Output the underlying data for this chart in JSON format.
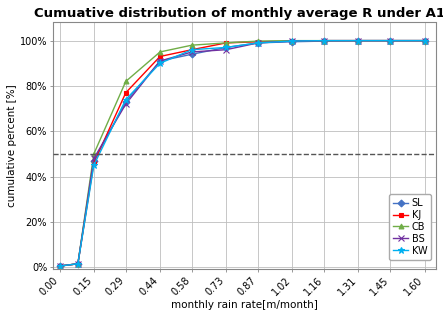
{
  "title": "Cumuative distribution of monthly average R under A1B",
  "xlabel": "monthly rain rate[m/month]",
  "ylabel": "cumulative percent [%]",
  "x_ticks": [
    0.0,
    0.15,
    0.29,
    0.44,
    0.58,
    0.73,
    0.87,
    1.02,
    1.16,
    1.31,
    1.45,
    1.6
  ],
  "series": [
    {
      "label": "SL",
      "color": "#4472C4",
      "marker": "D",
      "markersize": 3.5,
      "x": [
        0.0,
        0.08,
        0.15,
        0.29,
        0.44,
        0.58,
        0.73,
        0.87,
        1.02,
        1.16,
        1.31,
        1.45,
        1.6
      ],
      "y": [
        0.005,
        0.015,
        0.47,
        0.73,
        0.91,
        0.94,
        0.97,
        0.99,
        0.995,
        0.998,
        1.0,
        1.0,
        1.0
      ]
    },
    {
      "label": "KJ",
      "color": "#FF0000",
      "marker": "s",
      "markersize": 3.5,
      "x": [
        0.0,
        0.08,
        0.15,
        0.29,
        0.44,
        0.58,
        0.73,
        0.87,
        1.02,
        1.16,
        1.31,
        1.45,
        1.6
      ],
      "y": [
        0.005,
        0.015,
        0.46,
        0.77,
        0.93,
        0.96,
        0.99,
        0.995,
        0.998,
        1.0,
        1.0,
        1.0,
        1.0
      ]
    },
    {
      "label": "CB",
      "color": "#70AD47",
      "marker": "^",
      "markersize": 3.5,
      "x": [
        0.0,
        0.08,
        0.15,
        0.29,
        0.44,
        0.58,
        0.73,
        0.87,
        1.02,
        1.16,
        1.31,
        1.45,
        1.6
      ],
      "y": [
        0.005,
        0.015,
        0.5,
        0.82,
        0.95,
        0.98,
        0.99,
        0.998,
        1.0,
        1.0,
        1.0,
        1.0,
        1.0
      ]
    },
    {
      "label": "BS",
      "color": "#7030A0",
      "marker": "x",
      "markersize": 4.0,
      "x": [
        0.0,
        0.08,
        0.15,
        0.29,
        0.44,
        0.58,
        0.73,
        0.87,
        1.02,
        1.16,
        1.31,
        1.45,
        1.6
      ],
      "y": [
        0.005,
        0.015,
        0.48,
        0.72,
        0.91,
        0.95,
        0.96,
        0.99,
        0.998,
        1.0,
        1.0,
        1.0,
        1.0
      ]
    },
    {
      "label": "KW",
      "color": "#00B0F0",
      "marker": "*",
      "markersize": 4.5,
      "x": [
        0.0,
        0.08,
        0.15,
        0.29,
        0.44,
        0.58,
        0.73,
        0.87,
        1.02,
        1.16,
        1.31,
        1.45,
        1.6
      ],
      "y": [
        0.005,
        0.015,
        0.45,
        0.74,
        0.9,
        0.96,
        0.97,
        0.99,
        0.998,
        1.0,
        1.0,
        1.0,
        1.0
      ]
    }
  ],
  "hline_y": 0.5,
  "hline_color": "#555555",
  "ylim": [
    -0.01,
    1.08
  ],
  "xlim": [
    -0.03,
    1.65
  ],
  "background_color": "#FFFFFF",
  "grid_color": "#BEBEBE",
  "title_fontsize": 9.5,
  "label_fontsize": 7.5,
  "tick_fontsize": 7,
  "legend_fontsize": 7
}
